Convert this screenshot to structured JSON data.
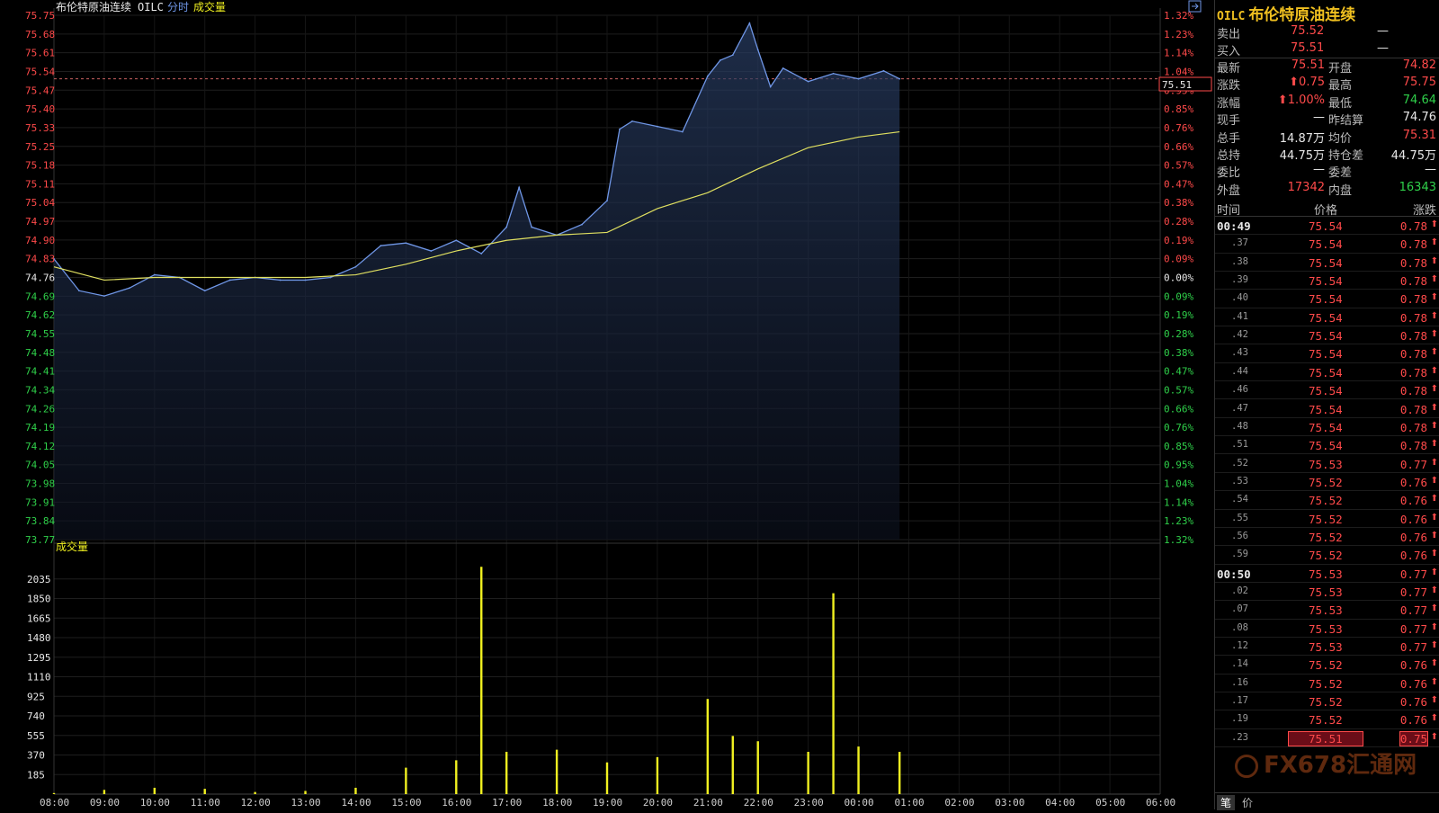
{
  "header": {
    "name": "布伦特原油连续",
    "code": "OILC",
    "mode": "分时",
    "indicator": "成交量",
    "volume_title": "成交量",
    "last_price_tag": "75.51"
  },
  "colors": {
    "up": "#ff4a4a",
    "down": "#2fd04a",
    "price_line": "#6f96e6",
    "avg_line": "#e0e060",
    "volume": "#f0f020",
    "title_gold": "#f0c020"
  },
  "price_axis": {
    "left_labels": [
      "75.75",
      "75.68",
      "75.61",
      "75.54",
      "75.47",
      "75.40",
      "75.33",
      "75.25",
      "75.18",
      "75.11",
      "75.04",
      "74.97",
      "74.90",
      "74.83",
      "74.76",
      "74.69",
      "74.62",
      "74.55",
      "74.48",
      "74.41",
      "74.34",
      "74.26",
      "74.19",
      "74.12",
      "74.05",
      "73.98",
      "73.91",
      "73.84",
      "73.77"
    ],
    "right_labels": [
      "1.32%",
      "1.23%",
      "1.14%",
      "1.04%",
      "0.95%",
      "0.85%",
      "0.76%",
      "0.66%",
      "0.57%",
      "0.47%",
      "0.38%",
      "0.28%",
      "0.19%",
      "0.09%",
      "0.00%",
      "0.09%",
      "0.19%",
      "0.28%",
      "0.38%",
      "0.47%",
      "0.57%",
      "0.66%",
      "0.76%",
      "0.85%",
      "0.95%",
      "1.04%",
      "1.14%",
      "1.23%",
      "1.32%"
    ],
    "center_index": 14
  },
  "volume_axis": {
    "labels": [
      "2035",
      "1850",
      "1665",
      "1480",
      "1295",
      "1110",
      "925",
      "740",
      "555",
      "370",
      "185"
    ]
  },
  "time_axis": {
    "labels": [
      "08:00",
      "09:00",
      "10:00",
      "11:00",
      "12:00",
      "13:00",
      "14:00",
      "15:00",
      "16:00",
      "17:00",
      "18:00",
      "19:00",
      "20:00",
      "21:00",
      "22:00",
      "23:00",
      "00:00",
      "01:00",
      "02:00",
      "03:00",
      "04:00",
      "05:00",
      "06:00"
    ]
  },
  "chart_data": {
    "type": "line",
    "series": [
      {
        "name": "价格",
        "x": [
          "08:00",
          "08:30",
          "09:00",
          "09:30",
          "10:00",
          "10:30",
          "11:00",
          "11:30",
          "12:00",
          "12:30",
          "13:00",
          "13:30",
          "14:00",
          "14:30",
          "15:00",
          "15:30",
          "16:00",
          "16:30",
          "17:00",
          "17:15",
          "17:30",
          "18:00",
          "18:30",
          "19:00",
          "19:15",
          "19:30",
          "20:00",
          "20:30",
          "21:00",
          "21:15",
          "21:30",
          "21:50",
          "22:00",
          "22:15",
          "22:30",
          "23:00",
          "23:30",
          "00:00",
          "00:30",
          "00:49"
        ],
        "values": [
          74.83,
          74.71,
          74.69,
          74.72,
          74.77,
          74.76,
          74.71,
          74.75,
          74.76,
          74.75,
          74.75,
          74.76,
          74.8,
          74.88,
          74.89,
          74.86,
          74.9,
          74.85,
          74.95,
          75.1,
          74.95,
          74.92,
          74.96,
          75.05,
          75.32,
          75.35,
          75.33,
          75.31,
          75.52,
          75.58,
          75.6,
          75.72,
          75.62,
          75.48,
          75.55,
          75.5,
          75.53,
          75.51,
          75.54,
          75.51
        ]
      },
      {
        "name": "均价",
        "x": [
          "08:00",
          "09:00",
          "10:00",
          "11:00",
          "12:00",
          "13:00",
          "14:00",
          "15:00",
          "16:00",
          "17:00",
          "18:00",
          "19:00",
          "20:00",
          "21:00",
          "22:00",
          "23:00",
          "00:00",
          "00:49"
        ],
        "values": [
          74.8,
          74.75,
          74.76,
          74.76,
          74.76,
          74.76,
          74.77,
          74.81,
          74.86,
          74.9,
          74.92,
          74.93,
          75.02,
          75.08,
          75.17,
          75.25,
          75.29,
          75.31
        ]
      }
    ],
    "volume": {
      "x": [
        "08:00",
        "09:00",
        "10:00",
        "11:00",
        "12:00",
        "13:00",
        "14:00",
        "15:00",
        "16:00",
        "16:30",
        "17:00",
        "18:00",
        "19:00",
        "20:00",
        "21:00",
        "21:30",
        "22:00",
        "23:00",
        "23:30",
        "00:00",
        "00:49"
      ],
      "values": [
        10,
        40,
        60,
        50,
        20,
        30,
        60,
        250,
        320,
        2150,
        400,
        420,
        300,
        350,
        900,
        550,
        500,
        400,
        1900,
        450,
        400
      ]
    },
    "ylim": [
      73.77,
      75.75
    ],
    "volume_ylim": [
      0,
      2220
    ],
    "prev_settle": 74.76
  },
  "quote_panel": {
    "title_code": "OILC",
    "title_name": "布伦特原油连续",
    "sell_label": "卖出",
    "sell_price": "75.52",
    "sell_qty": "—",
    "buy_label": "买入",
    "buy_price": "75.51",
    "buy_qty": "—",
    "rows": [
      {
        "l1": "最新",
        "v1": "75.51",
        "c1": "red",
        "l2": "开盘",
        "v2": "74.82",
        "c2": "red"
      },
      {
        "l1": "涨跌",
        "v1": "⬆0.75",
        "c1": "red",
        "l2": "最高",
        "v2": "75.75",
        "c2": "red"
      },
      {
        "l1": "涨幅",
        "v1": "⬆1.00%",
        "c1": "red",
        "l2": "最低",
        "v2": "74.64",
        "c2": "green"
      },
      {
        "l1": "现手",
        "v1": "—",
        "c1": "white",
        "l2": "昨结算",
        "v2": "74.76",
        "c2": "white"
      },
      {
        "l1": "总手",
        "v1": "14.87万",
        "c1": "white",
        "l2": "均价",
        "v2": "75.31",
        "c2": "red"
      },
      {
        "l1": "总持",
        "v1": "44.75万",
        "c1": "white",
        "l2": "持仓差",
        "v2": "44.75万",
        "c2": "white"
      },
      {
        "l1": "委比",
        "v1": "—",
        "c1": "white",
        "l2": "委差",
        "v2": "—",
        "c2": "white"
      },
      {
        "l1": "外盘",
        "v1": "17342",
        "c1": "red",
        "l2": "内盘",
        "v2": "16343",
        "c2": "green"
      }
    ]
  },
  "ticks": {
    "headers": {
      "time": "时间",
      "price": "价格",
      "change": "涨跌"
    },
    "rows": [
      {
        "t": "00:49",
        "p": "75.54",
        "c": "0.78",
        "big": true
      },
      {
        "t": ".37",
        "p": "75.54",
        "c": "0.78"
      },
      {
        "t": ".38",
        "p": "75.54",
        "c": "0.78"
      },
      {
        "t": ".39",
        "p": "75.54",
        "c": "0.78"
      },
      {
        "t": ".40",
        "p": "75.54",
        "c": "0.78"
      },
      {
        "t": ".41",
        "p": "75.54",
        "c": "0.78"
      },
      {
        "t": ".42",
        "p": "75.54",
        "c": "0.78"
      },
      {
        "t": ".43",
        "p": "75.54",
        "c": "0.78"
      },
      {
        "t": ".44",
        "p": "75.54",
        "c": "0.78"
      },
      {
        "t": ".46",
        "p": "75.54",
        "c": "0.78"
      },
      {
        "t": ".47",
        "p": "75.54",
        "c": "0.78"
      },
      {
        "t": ".48",
        "p": "75.54",
        "c": "0.78"
      },
      {
        "t": ".51",
        "p": "75.54",
        "c": "0.78"
      },
      {
        "t": ".52",
        "p": "75.53",
        "c": "0.77"
      },
      {
        "t": ".53",
        "p": "75.52",
        "c": "0.76"
      },
      {
        "t": ".54",
        "p": "75.52",
        "c": "0.76"
      },
      {
        "t": ".55",
        "p": "75.52",
        "c": "0.76"
      },
      {
        "t": ".56",
        "p": "75.52",
        "c": "0.76"
      },
      {
        "t": ".59",
        "p": "75.52",
        "c": "0.76"
      },
      {
        "t": "00:50",
        "p": "75.53",
        "c": "0.77",
        "big": true
      },
      {
        "t": ".02",
        "p": "75.53",
        "c": "0.77"
      },
      {
        "t": ".07",
        "p": "75.53",
        "c": "0.77"
      },
      {
        "t": ".08",
        "p": "75.53",
        "c": "0.77"
      },
      {
        "t": ".12",
        "p": "75.53",
        "c": "0.77"
      },
      {
        "t": ".14",
        "p": "75.52",
        "c": "0.76"
      },
      {
        "t": ".16",
        "p": "75.52",
        "c": "0.76"
      },
      {
        "t": ".17",
        "p": "75.52",
        "c": "0.76"
      },
      {
        "t": ".19",
        "p": "75.52",
        "c": "0.76"
      },
      {
        "t": ".23",
        "p": "75.51",
        "c": "0.75",
        "hl": true
      }
    ]
  },
  "watermark": "FX678汇通网",
  "bottom_tabs": [
    "笔",
    "价"
  ]
}
